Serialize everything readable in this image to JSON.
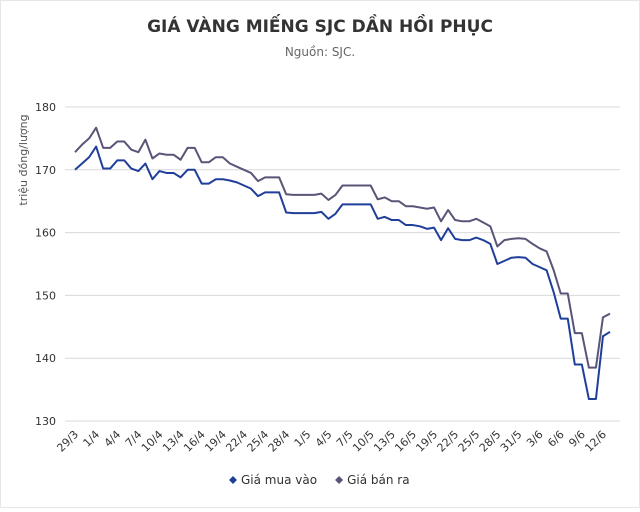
{
  "chart_data": {
    "type": "line",
    "title": "GIÁ VÀNG MIẾNG SJC DẦN HỒI PHỤC",
    "subtitle": "Nguồn: SJC.",
    "y_label": "triệu đồng/lượng",
    "categories": [
      "29/3",
      null,
      null,
      "1/4",
      null,
      null,
      "4/4",
      null,
      null,
      "7/4",
      null,
      null,
      "10/4",
      null,
      null,
      "13/4",
      null,
      null,
      "16/4",
      null,
      null,
      "19/4",
      null,
      null,
      "22/4",
      null,
      null,
      "25/4",
      null,
      null,
      "28/4",
      null,
      null,
      "1/5",
      null,
      null,
      "4/5",
      null,
      null,
      "7/5",
      null,
      null,
      "10/5",
      null,
      null,
      "13/5",
      null,
      null,
      "16/5",
      null,
      null,
      "19/5",
      null,
      null,
      "22/5",
      null,
      null,
      "25/5",
      null,
      null,
      "28/5",
      null,
      null,
      "31/5",
      null,
      null,
      "3/6",
      null,
      null,
      "6/6",
      null,
      null,
      "9/6",
      null,
      null,
      "12/6",
      null
    ],
    "series": [
      {
        "name": "Giá mua vào",
        "color": "#1f3f9a",
        "values": [
          170,
          171,
          172,
          173.7,
          170.2,
          170.2,
          171.5,
          171.5,
          170.2,
          169.8,
          171,
          168.5,
          169.8,
          169.5,
          169.5,
          168.8,
          170,
          170,
          167.8,
          167.8,
          168.5,
          168.5,
          168.3,
          168,
          167.5,
          167,
          165.8,
          166.4,
          166.4,
          166.4,
          163.2,
          163.1,
          163.1,
          163.1,
          163.1,
          163.3,
          162.2,
          163,
          164.5,
          164.5,
          164.5,
          164.5,
          164.5,
          162.2,
          162.5,
          162,
          162,
          161.2,
          161.2,
          161,
          160.6,
          160.8,
          158.8,
          160.7,
          159,
          158.8,
          158.8,
          159.2,
          158.8,
          158.2,
          155,
          155.5,
          156,
          156.1,
          156,
          155,
          154.5,
          154,
          150.5,
          146.3,
          146.3,
          139,
          139,
          133.5,
          133.5,
          143.5,
          144.2
        ]
      },
      {
        "name": "Giá bán ra",
        "color": "#5a5478",
        "values": [
          172.8,
          174,
          175,
          176.7,
          173.5,
          173.5,
          174.5,
          174.5,
          173.2,
          172.8,
          174.8,
          171.8,
          172.6,
          172.4,
          172.4,
          171.6,
          173.5,
          173.5,
          171.2,
          171.2,
          172,
          172,
          171,
          170.5,
          170,
          169.5,
          168.2,
          168.8,
          168.8,
          168.8,
          166.1,
          166,
          166,
          166,
          166,
          166.2,
          165.2,
          166,
          167.5,
          167.5,
          167.5,
          167.5,
          167.5,
          165.3,
          165.6,
          165,
          165,
          164.2,
          164.2,
          164,
          163.8,
          164,
          161.8,
          163.6,
          162,
          161.8,
          161.8,
          162.2,
          161.6,
          161,
          157.8,
          158.8,
          159,
          159.1,
          159,
          158.2,
          157.5,
          157,
          154,
          150.3,
          150.3,
          144,
          144,
          138.5,
          138.5,
          146.5,
          147.1
        ]
      }
    ],
    "ylim": [
      130,
      180
    ],
    "yticks": [
      130,
      140,
      150,
      160,
      170,
      180
    ],
    "grid": true,
    "legend": "bottom"
  }
}
